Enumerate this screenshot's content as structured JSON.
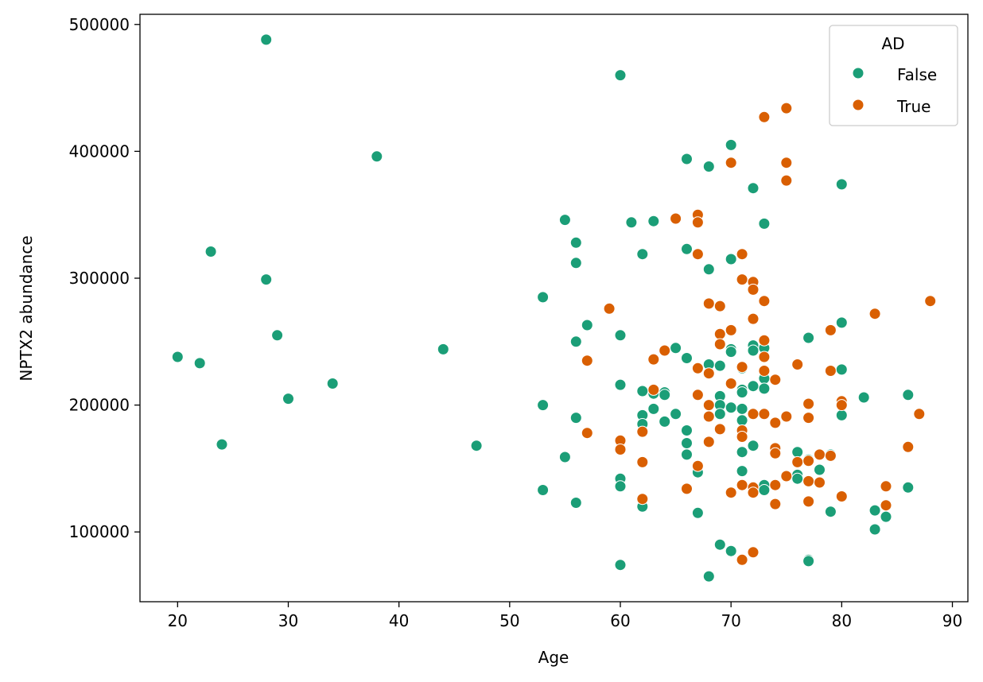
{
  "chart_data": {
    "type": "scatter",
    "title": "",
    "xlabel": "Age",
    "ylabel": "NPTX2 abundance",
    "xlim": [
      16.6,
      91.4
    ],
    "ylim": [
      45000,
      508000
    ],
    "xticks": [
      20,
      30,
      40,
      50,
      60,
      70,
      80,
      90
    ],
    "yticks": [
      100000,
      200000,
      300000,
      400000,
      500000
    ],
    "grid": false,
    "legend": {
      "title": "AD",
      "placement": "upper right"
    },
    "series": [
      {
        "name": "False",
        "color": "#1b9e77",
        "points": [
          [
            20,
            238000
          ],
          [
            22,
            233000
          ],
          [
            23,
            321000
          ],
          [
            24,
            169000
          ],
          [
            28,
            488000
          ],
          [
            28,
            299000
          ],
          [
            29,
            255000
          ],
          [
            30,
            205000
          ],
          [
            34,
            217000
          ],
          [
            38,
            396000
          ],
          [
            44,
            244000
          ],
          [
            47,
            168000
          ],
          [
            53,
            285000
          ],
          [
            53,
            200000
          ],
          [
            53,
            133000
          ],
          [
            55,
            346000
          ],
          [
            55,
            159000
          ],
          [
            56,
            328000
          ],
          [
            56,
            312000
          ],
          [
            56,
            250000
          ],
          [
            56,
            190000
          ],
          [
            56,
            123000
          ],
          [
            57,
            263000
          ],
          [
            60,
            460000
          ],
          [
            60,
            255000
          ],
          [
            60,
            216000
          ],
          [
            60,
            142000
          ],
          [
            60,
            136000
          ],
          [
            60,
            74000
          ],
          [
            61,
            344000
          ],
          [
            62,
            319000
          ],
          [
            62,
            211000
          ],
          [
            62,
            192000
          ],
          [
            62,
            185000
          ],
          [
            62,
            120000
          ],
          [
            63,
            345000
          ],
          [
            63,
            209000
          ],
          [
            63,
            197000
          ],
          [
            64,
            210000
          ],
          [
            64,
            208000
          ],
          [
            64,
            187000
          ],
          [
            65,
            245000
          ],
          [
            65,
            193000
          ],
          [
            66,
            394000
          ],
          [
            66,
            323000
          ],
          [
            66,
            237000
          ],
          [
            66,
            180000
          ],
          [
            66,
            170000
          ],
          [
            66,
            161000
          ],
          [
            67,
            147000
          ],
          [
            67,
            115000
          ],
          [
            68,
            388000
          ],
          [
            68,
            307000
          ],
          [
            68,
            232000
          ],
          [
            68,
            65000
          ],
          [
            69,
            231000
          ],
          [
            69,
            207000
          ],
          [
            69,
            200000
          ],
          [
            69,
            193000
          ],
          [
            69,
            90000
          ],
          [
            70,
            405000
          ],
          [
            70,
            315000
          ],
          [
            70,
            244000
          ],
          [
            70,
            242000
          ],
          [
            70,
            198000
          ],
          [
            70,
            85000
          ],
          [
            71,
            229000
          ],
          [
            71,
            212000
          ],
          [
            71,
            210000
          ],
          [
            71,
            197000
          ],
          [
            71,
            188000
          ],
          [
            71,
            163000
          ],
          [
            71,
            148000
          ],
          [
            72,
            371000
          ],
          [
            72,
            247000
          ],
          [
            72,
            243000
          ],
          [
            72,
            215000
          ],
          [
            72,
            168000
          ],
          [
            73,
            343000
          ],
          [
            73,
            245000
          ],
          [
            73,
            221000
          ],
          [
            73,
            213000
          ],
          [
            73,
            137000
          ],
          [
            73,
            133000
          ],
          [
            76,
            163000
          ],
          [
            76,
            145000
          ],
          [
            76,
            142000
          ],
          [
            77,
            253000
          ],
          [
            77,
            157000
          ],
          [
            77,
            78000
          ],
          [
            77,
            77000
          ],
          [
            78,
            149000
          ],
          [
            79,
            161000
          ],
          [
            79,
            116000
          ],
          [
            80,
            374000
          ],
          [
            80,
            265000
          ],
          [
            80,
            228000
          ],
          [
            80,
            192000
          ],
          [
            82,
            206000
          ],
          [
            83,
            117000
          ],
          [
            83,
            102000
          ],
          [
            84,
            112000
          ],
          [
            86,
            208000
          ],
          [
            86,
            135000
          ]
        ]
      },
      {
        "name": "True",
        "color": "#d95f02",
        "points": [
          [
            57,
            235000
          ],
          [
            57,
            178000
          ],
          [
            59,
            276000
          ],
          [
            60,
            172000
          ],
          [
            60,
            165000
          ],
          [
            62,
            179000
          ],
          [
            62,
            155000
          ],
          [
            62,
            126000
          ],
          [
            63,
            236000
          ],
          [
            63,
            212000
          ],
          [
            64,
            243000
          ],
          [
            65,
            347000
          ],
          [
            66,
            134000
          ],
          [
            67,
            350000
          ],
          [
            67,
            344000
          ],
          [
            67,
            319000
          ],
          [
            67,
            229000
          ],
          [
            67,
            208000
          ],
          [
            67,
            152000
          ],
          [
            68,
            280000
          ],
          [
            68,
            225000
          ],
          [
            68,
            200000
          ],
          [
            68,
            191000
          ],
          [
            68,
            171000
          ],
          [
            69,
            278000
          ],
          [
            69,
            256000
          ],
          [
            69,
            248000
          ],
          [
            69,
            181000
          ],
          [
            70,
            391000
          ],
          [
            70,
            259000
          ],
          [
            70,
            217000
          ],
          [
            70,
            131000
          ],
          [
            71,
            319000
          ],
          [
            71,
            299000
          ],
          [
            71,
            230000
          ],
          [
            71,
            180000
          ],
          [
            71,
            175000
          ],
          [
            71,
            137000
          ],
          [
            71,
            78000
          ],
          [
            72,
            297000
          ],
          [
            72,
            291000
          ],
          [
            72,
            268000
          ],
          [
            72,
            193000
          ],
          [
            72,
            135000
          ],
          [
            72,
            131000
          ],
          [
            72,
            84000
          ],
          [
            73,
            427000
          ],
          [
            73,
            282000
          ],
          [
            73,
            251000
          ],
          [
            73,
            238000
          ],
          [
            73,
            227000
          ],
          [
            73,
            193000
          ],
          [
            74,
            220000
          ],
          [
            74,
            186000
          ],
          [
            74,
            166000
          ],
          [
            74,
            162000
          ],
          [
            74,
            137000
          ],
          [
            74,
            122000
          ],
          [
            75,
            434000
          ],
          [
            75,
            391000
          ],
          [
            75,
            377000
          ],
          [
            75,
            191000
          ],
          [
            75,
            144000
          ],
          [
            76,
            232000
          ],
          [
            76,
            155000
          ],
          [
            77,
            201000
          ],
          [
            77,
            190000
          ],
          [
            77,
            156000
          ],
          [
            77,
            140000
          ],
          [
            77,
            124000
          ],
          [
            78,
            161000
          ],
          [
            78,
            139000
          ],
          [
            79,
            259000
          ],
          [
            79,
            227000
          ],
          [
            79,
            160000
          ],
          [
            80,
            203000
          ],
          [
            80,
            200000
          ],
          [
            80,
            128000
          ],
          [
            83,
            272000
          ],
          [
            84,
            136000
          ],
          [
            84,
            121000
          ],
          [
            86,
            167000
          ],
          [
            87,
            193000
          ],
          [
            88,
            282000
          ]
        ]
      }
    ]
  }
}
